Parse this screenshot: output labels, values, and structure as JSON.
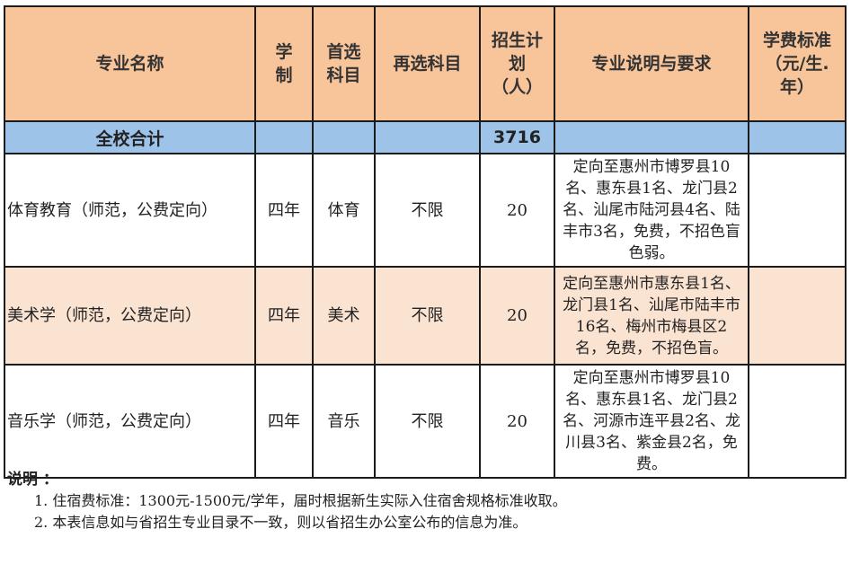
{
  "headers": [
    "专业名称",
    "学制",
    "首选科目",
    "再选科目",
    "招生计划（人）",
    "专业说明与要求",
    "学费标准（元/生.年）"
  ],
  "header_lines": {
    "duration": [
      "学",
      "制"
    ],
    "first_subject": [
      "首选",
      "科目"
    ],
    "plan": [
      "招生计",
      "划",
      "（人）"
    ],
    "fee": [
      "学费标准",
      "（元/生.",
      "年）"
    ]
  },
  "total": {
    "label": "全校合计",
    "plan": "3716"
  },
  "rows": [
    {
      "name": "体育教育（师范，公费定向）",
      "duration": "四年",
      "first": "体育",
      "second": "不限",
      "plan": "20",
      "desc": "定向至惠州市博罗县10名、惠东县1名、龙门县2名、汕尾市陆河县4名、陆丰市3名，免费，不招色盲色弱。",
      "fee": ""
    },
    {
      "name": "美术学（师范，公费定向）",
      "duration": "四年",
      "first": "美术",
      "second": "不限",
      "plan": "20",
      "desc": "定向至惠州市惠东县1名、龙门县1名、汕尾市陆丰市16名、梅州市梅县区2名，免费，不招色盲。",
      "fee": ""
    },
    {
      "name": "音乐学（师范，公费定向）",
      "duration": "四年",
      "first": "音乐",
      "second": "不限",
      "plan": "20",
      "desc": "定向至惠州市博罗县10名、惠东县1名、龙门县2名、河源市连平县2名、龙川县3名、紫金县2名，免费。",
      "fee": ""
    }
  ],
  "notes": {
    "title": "说明 ：",
    "items": [
      "1. 住宿费标准：1300元-1500元/学年，届时根据新生实际入住宿舍规格标准收取。",
      "2. 本表信息如与省招生专业目录不一致，则以省招生办公室公布的信息为准。"
    ]
  }
}
